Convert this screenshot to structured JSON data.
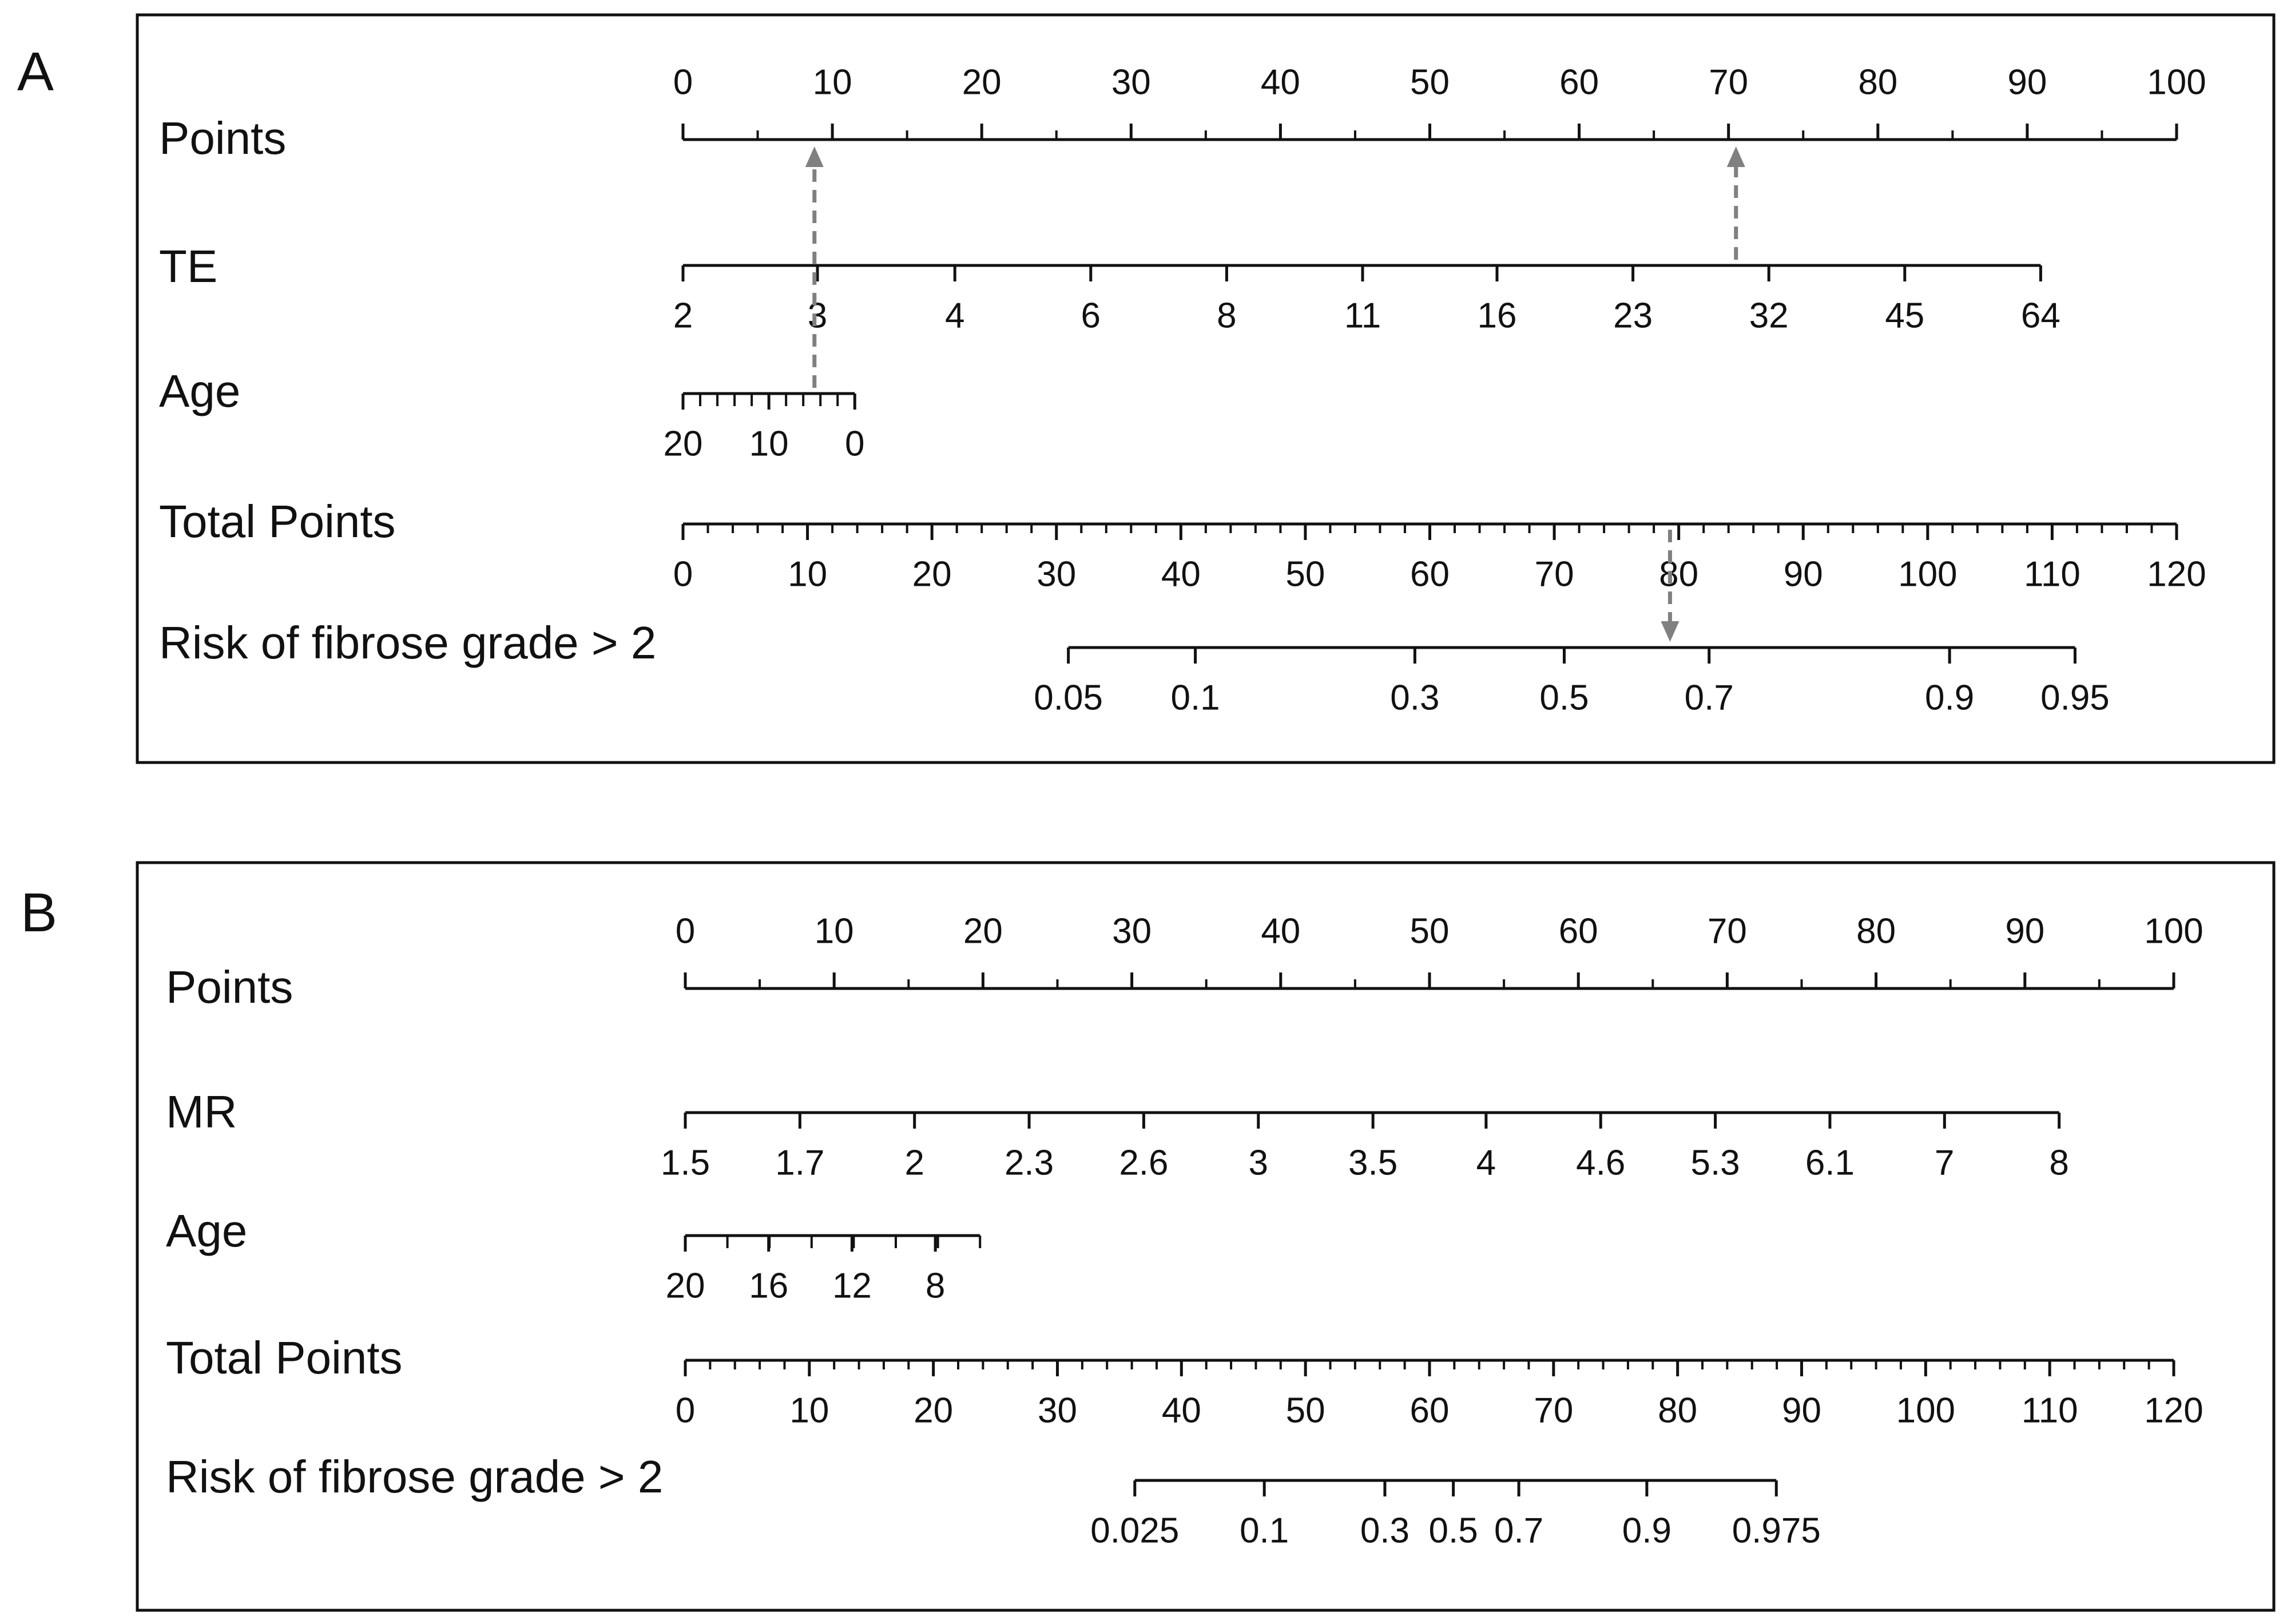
{
  "panels": [
    {
      "letter": "A",
      "axes": [
        {
          "label": "Points",
          "scale": "linear",
          "ticks": [
            "0",
            "10",
            "20",
            "30",
            "40",
            "50",
            "60",
            "70",
            "80",
            "90",
            "100"
          ],
          "tick_values": [
            0,
            10,
            20,
            30,
            40,
            50,
            60,
            70,
            80,
            90,
            100
          ],
          "points_range": [
            0,
            100
          ],
          "labels_above": true,
          "minor": 5
        },
        {
          "label": "TE",
          "scale": "nonlinear",
          "ticks": [
            "2",
            "3",
            "4",
            "6",
            "8",
            "11",
            "16",
            "23",
            "32",
            "45",
            "64"
          ],
          "tick_points": [
            0,
            9,
            18.2,
            27.3,
            36.4,
            45.5,
            54.5,
            63.6,
            72.7,
            81.8,
            90.9
          ]
        },
        {
          "label": "Age",
          "scale": "reverse",
          "ticks": [
            "20",
            "10",
            "0"
          ],
          "tick_points": [
            0,
            5.75,
            11.5
          ],
          "minor_count": 10
        },
        {
          "label": "Total Points",
          "scale": "linear",
          "ticks": [
            "0",
            "10",
            "20",
            "30",
            "40",
            "50",
            "60",
            "70",
            "80",
            "90",
            "100",
            "110",
            "120"
          ],
          "tick_values": [
            0,
            10,
            20,
            30,
            40,
            50,
            60,
            70,
            80,
            90,
            100,
            110,
            120
          ],
          "points_range": [
            0,
            120
          ],
          "minor": 2
        },
        {
          "label": "Risk of fibrose grade > 2",
          "scale": "nonlinear",
          "ticks": [
            "0.05",
            "0.1",
            "0.3",
            "0.5",
            "0.7",
            "0.9",
            "0.95"
          ],
          "tick_points": [
            25.8,
            34.3,
            49,
            59,
            68.7,
            84.8,
            93.2
          ]
        }
      ],
      "example": {
        "points_te": 70.5,
        "points_age": 8.8,
        "total_points": 79.3
      }
    },
    {
      "letter": "B",
      "axes": [
        {
          "label": "Points",
          "scale": "linear",
          "ticks": [
            "0",
            "10",
            "20",
            "30",
            "40",
            "50",
            "60",
            "70",
            "80",
            "90",
            "100"
          ],
          "tick_values": [
            0,
            10,
            20,
            30,
            40,
            50,
            60,
            70,
            80,
            90,
            100
          ],
          "points_range": [
            0,
            100
          ],
          "labels_above": true,
          "minor": 5
        },
        {
          "label": "MR",
          "scale": "nonlinear",
          "ticks": [
            "1.5",
            "1.7",
            "2",
            "2.3",
            "2.6",
            "3",
            "3.5",
            "4",
            "4.6",
            "5.3",
            "6.1",
            "7",
            "8"
          ],
          "tick_points": [
            0,
            7.7,
            15.4,
            23.1,
            30.8,
            38.5,
            46.2,
            53.8,
            61.5,
            69.2,
            76.9,
            84.6,
            92.3
          ]
        },
        {
          "label": "Age",
          "scale": "reverse",
          "ticks": [
            "20",
            "16",
            "12",
            "8"
          ],
          "tick_points": [
            0,
            5.6,
            11.2,
            16.8
          ],
          "axis_end": 19.8,
          "minor_count": 7
        },
        {
          "label": "Total Points",
          "scale": "linear",
          "ticks": [
            "0",
            "10",
            "20",
            "30",
            "40",
            "50",
            "60",
            "70",
            "80",
            "90",
            "100",
            "110",
            "120"
          ],
          "tick_values": [
            0,
            10,
            20,
            30,
            40,
            50,
            60,
            70,
            80,
            90,
            100,
            110,
            120
          ],
          "points_range": [
            0,
            120
          ],
          "minor": 2
        },
        {
          "label": "Risk of fibrose grade > 2",
          "scale": "nonlinear",
          "ticks": [
            "0.025",
            "0.1",
            "0.3",
            "0.5",
            "0.7",
            "0.9",
            "0.975"
          ],
          "tick_points": [
            30.2,
            38.9,
            47,
            51.6,
            56,
            64.6,
            73.3
          ]
        }
      ]
    }
  ],
  "colors": {
    "axis": "#111111",
    "guide_arrow": "#808080",
    "frame": "#111111"
  }
}
